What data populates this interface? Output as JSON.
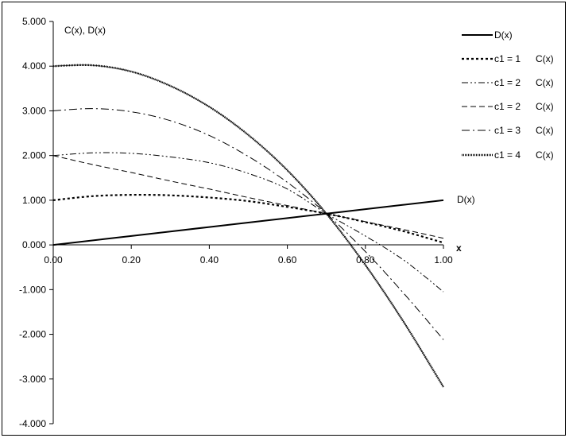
{
  "chart_data": {
    "type": "line",
    "title": "",
    "ylabel": "C(x), D(x)",
    "xlabel": "x",
    "xlim": [
      0,
      1
    ],
    "ylim": [
      -4,
      5
    ],
    "x_ticks": [
      "0.00",
      "0.20",
      "0.40",
      "0.60",
      "0.80",
      "1.00"
    ],
    "y_ticks": [
      "5.000",
      "4.000",
      "3.000",
      "2.000",
      "1.000",
      "0.000",
      "-1.000",
      "-2.000",
      "-3.000",
      "-4.000"
    ],
    "grid": false,
    "legend_position": "right",
    "curve_label": "D(x)",
    "series": [
      {
        "name": "D(x)",
        "style": "solid",
        "x": [
          0,
          0.2,
          0.4,
          0.6,
          0.7,
          0.8,
          1.0
        ],
        "y": [
          0.0,
          0.2,
          0.4,
          0.6,
          0.7,
          0.8,
          1.0
        ]
      },
      {
        "name": "c1 = 1  C(x)",
        "style": "dotted",
        "x": [
          0,
          0.1,
          0.2,
          0.3,
          0.4,
          0.5,
          0.6,
          0.7,
          0.8,
          0.9,
          1.0
        ],
        "y": [
          1.0,
          1.09,
          1.12,
          1.11,
          1.06,
          0.98,
          0.85,
          0.7,
          0.51,
          0.3,
          0.05
        ]
      },
      {
        "name": "c1 = 2  C(x)",
        "style": "dashdotdot",
        "x": [
          0,
          0.1,
          0.2,
          0.3,
          0.4,
          0.5,
          0.6,
          0.7,
          0.8,
          0.9,
          1.0
        ],
        "y": [
          2.0,
          2.06,
          2.05,
          1.97,
          1.84,
          1.6,
          1.25,
          0.7,
          0.2,
          -0.35,
          -1.05
        ]
      },
      {
        "name": "c1 = 2  C(x)",
        "style": "dashed",
        "x": [
          0,
          0.1,
          0.2,
          0.3,
          0.4,
          0.5,
          0.6,
          0.7,
          0.8,
          0.9,
          1.0
        ],
        "y": [
          2.0,
          1.8,
          1.62,
          1.43,
          1.25,
          1.06,
          0.88,
          0.7,
          0.52,
          0.34,
          0.15
        ]
      },
      {
        "name": "c1 = 3  C(x)",
        "style": "dashdot",
        "x": [
          0,
          0.1,
          0.2,
          0.3,
          0.4,
          0.5,
          0.6,
          0.7,
          0.8,
          0.9,
          1.0
        ],
        "y": [
          3.0,
          3.05,
          2.98,
          2.78,
          2.45,
          1.98,
          1.4,
          0.7,
          -0.15,
          -1.1,
          -2.12
        ]
      },
      {
        "name": "c1 = 4  C(x)",
        "style": "hatched",
        "x": [
          0,
          0.1,
          0.2,
          0.3,
          0.4,
          0.5,
          0.6,
          0.7,
          0.8,
          0.9,
          1.0
        ],
        "y": [
          4.0,
          4.02,
          3.88,
          3.56,
          3.09,
          2.46,
          1.67,
          0.7,
          -0.45,
          -1.75,
          -3.18
        ]
      }
    ]
  }
}
